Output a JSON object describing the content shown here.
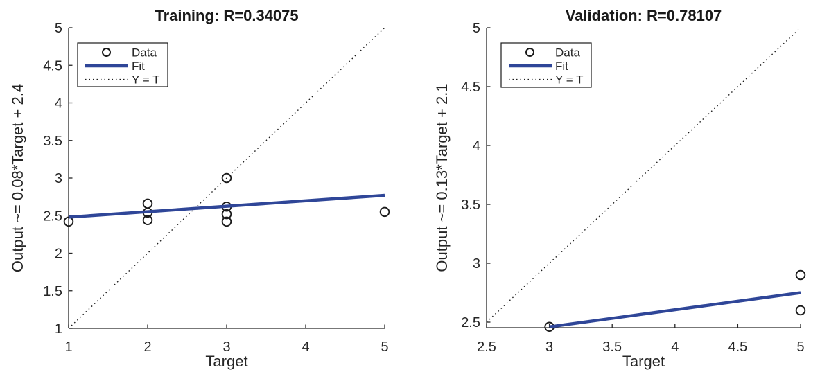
{
  "colors": {
    "background": "#ffffff",
    "fit_line": "#2f4698",
    "marker_stroke": "#1a1a1a",
    "identity_line": "#1a1a1a",
    "axis": "#262626",
    "text": "#262626",
    "title_text": "#1a1a1a",
    "legend_border": "#1a1a1a",
    "legend_background": "#ffffff"
  },
  "chart_data": [
    {
      "type": "scatter",
      "name": "training",
      "title": "Training: R=0.34075",
      "r_value": 0.34075,
      "xlabel": "Target",
      "ylabel": "Output ~= 0.08*Target + 2.4",
      "fit_equation": {
        "slope": 0.08,
        "intercept": 2.4
      },
      "xlim": [
        1,
        5
      ],
      "ylim": [
        1,
        5
      ],
      "xticks": [
        1,
        2,
        3,
        4,
        5
      ],
      "xtick_labels": [
        "1",
        "2",
        "3",
        "4",
        "5"
      ],
      "yticks": [
        1,
        1.5,
        2,
        2.5,
        3,
        3.5,
        4,
        4.5,
        5
      ],
      "ytick_labels": [
        "1",
        "1.5",
        "2",
        "2.5",
        "3",
        "3.5",
        "4",
        "4.5",
        "5"
      ],
      "points": [
        [
          1,
          2.42
        ],
        [
          2,
          2.66
        ],
        [
          2,
          2.54
        ],
        [
          2,
          2.44
        ],
        [
          3,
          3.0
        ],
        [
          3,
          2.62
        ],
        [
          3,
          2.52
        ],
        [
          3,
          2.42
        ],
        [
          5,
          2.55
        ]
      ],
      "fit_line": {
        "x1": 1,
        "y1": 2.48,
        "x2": 5,
        "y2": 2.77
      },
      "identity_line": {
        "x1": 1,
        "y1": 1,
        "x2": 5,
        "y2": 5
      },
      "legend_labels": [
        "Data",
        "Fit",
        "Y = T"
      ],
      "legend_position": "top-left",
      "grid": false
    },
    {
      "type": "scatter",
      "name": "validation",
      "title": "Validation: R=0.78107",
      "r_value": 0.78107,
      "xlabel": "Target",
      "ylabel": "Output ~= 0.13*Target + 2.1",
      "fit_equation": {
        "slope": 0.13,
        "intercept": 2.1
      },
      "xlim": [
        2.5,
        5
      ],
      "ylim": [
        2.453,
        5
      ],
      "xticks": [
        2.5,
        3,
        3.5,
        4,
        4.5,
        5
      ],
      "xtick_labels": [
        "2.5",
        "3",
        "3.5",
        "4",
        "4.5",
        "5"
      ],
      "yticks": [
        2.5,
        3,
        3.5,
        4,
        4.5,
        5
      ],
      "ytick_labels": [
        "2.5",
        "3",
        "3.5",
        "4",
        "4.5",
        "5"
      ],
      "points": [
        [
          3,
          2.46
        ],
        [
          5,
          2.9
        ],
        [
          5,
          2.6
        ]
      ],
      "fit_line": {
        "x1": 3,
        "y1": 2.46,
        "x2": 5,
        "y2": 2.75
      },
      "identity_line": {
        "x1": 2.5,
        "y1": 2.5,
        "x2": 5,
        "y2": 5
      },
      "legend_labels": [
        "Data",
        "Fit",
        "Y = T"
      ],
      "legend_position": "top-left",
      "grid": false
    }
  ]
}
